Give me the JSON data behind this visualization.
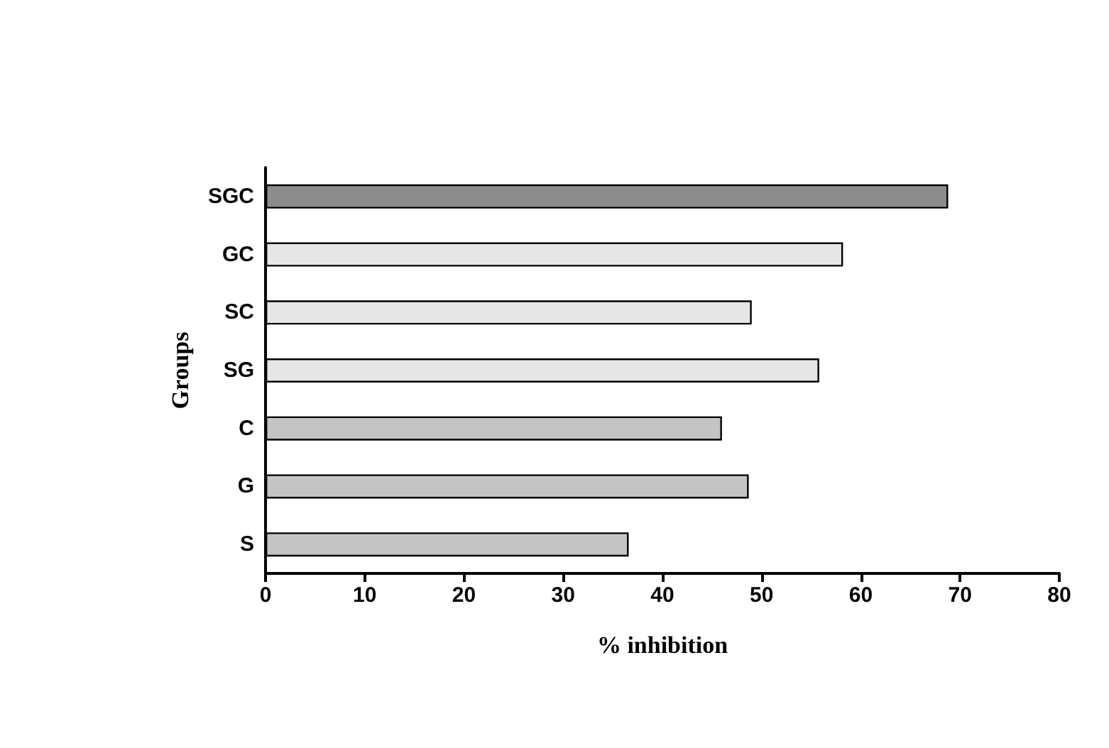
{
  "chart_data": {
    "type": "bar",
    "orientation": "horizontal",
    "xlabel": "% inhibition",
    "ylabel": "Groups",
    "categories": [
      "SGC",
      "GC",
      "SC",
      "SG",
      "C",
      "G",
      "S"
    ],
    "values": [
      68.8,
      58.2,
      49.0,
      55.8,
      46.0,
      48.7,
      36.6
    ],
    "colors": [
      "#8c8c8c",
      "#e6e6e6",
      "#e6e6e6",
      "#e6e6e6",
      "#c4c4c4",
      "#c4c4c4",
      "#c4c4c4"
    ],
    "xlim": [
      0,
      80
    ],
    "xticks": [
      0,
      10,
      20,
      30,
      40,
      50,
      60,
      70,
      80
    ],
    "grid": false
  }
}
